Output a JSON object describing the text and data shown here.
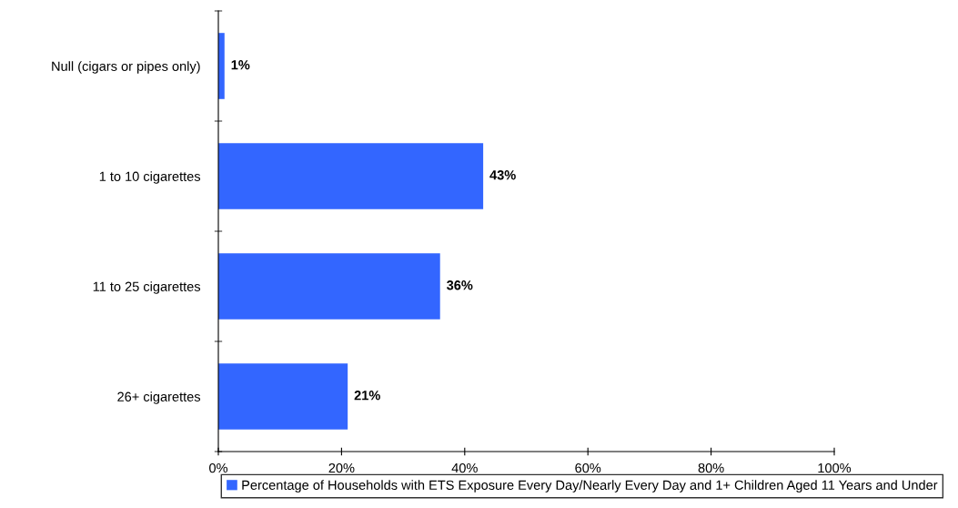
{
  "chart_data": {
    "type": "bar",
    "orientation": "horizontal",
    "categories": [
      "Null (cigars or pipes only)",
      "1 to 10 cigarettes",
      "11 to 25 cigarettes",
      "26+ cigarettes"
    ],
    "series": [
      {
        "name": "Percentage of Households with ETS Exposure Every Day/Nearly Every Day and 1+ Children Aged 11 Years and Under",
        "color": "#3366ff",
        "values": [
          1,
          43,
          36,
          21
        ],
        "value_labels": [
          "1%",
          "43%",
          "36%",
          "21%"
        ]
      }
    ],
    "xlim": [
      0,
      100
    ],
    "xticks": [
      {
        "value": 0,
        "label": "0%"
      },
      {
        "value": 20,
        "label": "20%"
      },
      {
        "value": 40,
        "label": "40%"
      },
      {
        "value": 60,
        "label": "60%"
      },
      {
        "value": 80,
        "label": "80%"
      },
      {
        "value": 100,
        "label": "100%"
      }
    ],
    "grid": false,
    "legend": "bottom"
  }
}
